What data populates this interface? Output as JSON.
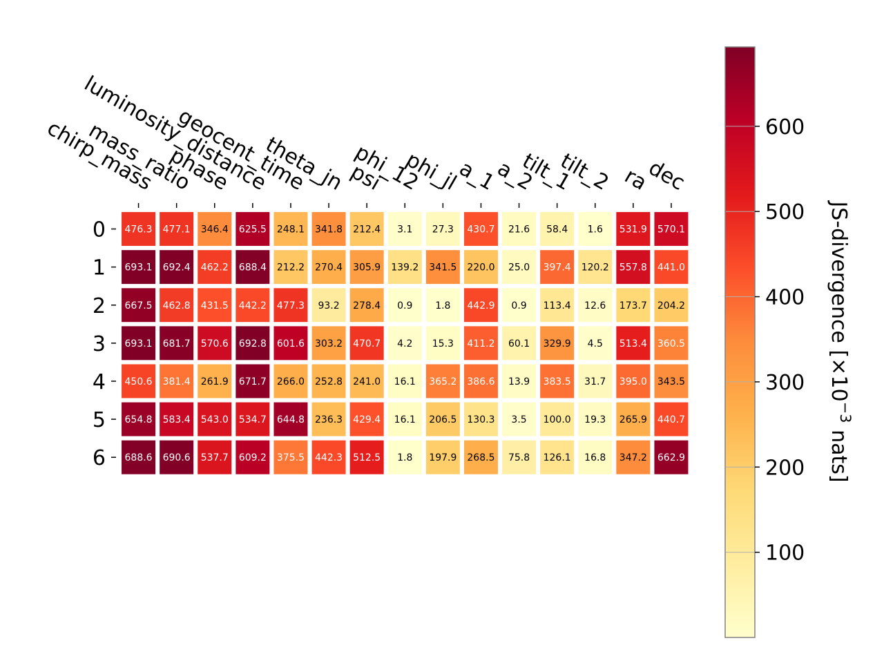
{
  "chart_data": {
    "type": "heatmap",
    "colormap": "YlOrRd",
    "x_categories": [
      "chirp_mass",
      "mass_ratio",
      "phase",
      "luminosity_distance",
      "geocent_time",
      "theta_jn",
      "psi",
      "phi_12",
      "phi_jl",
      "a_1",
      "a_2",
      "tilt_1",
      "tilt_2",
      "ra",
      "dec"
    ],
    "y_categories": [
      "0",
      "1",
      "2",
      "3",
      "4",
      "5",
      "6"
    ],
    "values": [
      [
        476.3,
        477.1,
        346.4,
        625.5,
        248.1,
        341.8,
        212.4,
        3.1,
        27.3,
        430.7,
        21.6,
        58.4,
        1.6,
        531.9,
        570.1
      ],
      [
        693.1,
        692.4,
        462.2,
        688.4,
        212.2,
        270.4,
        305.9,
        139.2,
        341.5,
        220.0,
        25.0,
        397.4,
        120.2,
        557.8,
        441.0
      ],
      [
        667.5,
        462.8,
        431.5,
        442.2,
        477.3,
        93.2,
        278.4,
        0.9,
        1.8,
        442.9,
        0.9,
        113.4,
        12.6,
        173.7,
        204.2
      ],
      [
        693.1,
        681.7,
        570.6,
        692.8,
        601.6,
        303.2,
        470.7,
        4.2,
        15.3,
        411.2,
        60.1,
        329.9,
        4.5,
        513.4,
        360.5
      ],
      [
        450.6,
        381.4,
        261.9,
        671.7,
        266.0,
        252.8,
        241.0,
        16.1,
        365.2,
        386.6,
        13.9,
        383.5,
        31.7,
        395.0,
        343.5
      ],
      [
        654.8,
        583.4,
        543.0,
        534.7,
        644.8,
        236.3,
        429.4,
        16.1,
        206.5,
        130.3,
        3.5,
        100.0,
        19.3,
        265.9,
        440.7
      ],
      [
        688.6,
        690.6,
        537.7,
        609.2,
        375.5,
        442.3,
        512.5,
        1.8,
        197.9,
        268.5,
        75.8,
        126.1,
        16.8,
        347.2,
        662.9
      ]
    ],
    "colorbar": {
      "label": "JS-divergence [×10",
      "label_exponent": "−3",
      "label_suffix": " nats]",
      "range": [
        0,
        693.1
      ],
      "ticks": [
        100,
        200,
        300,
        400,
        500,
        600
      ],
      "tick_labels": [
        "100",
        "200",
        "300",
        "400",
        "500",
        "600"
      ]
    }
  }
}
